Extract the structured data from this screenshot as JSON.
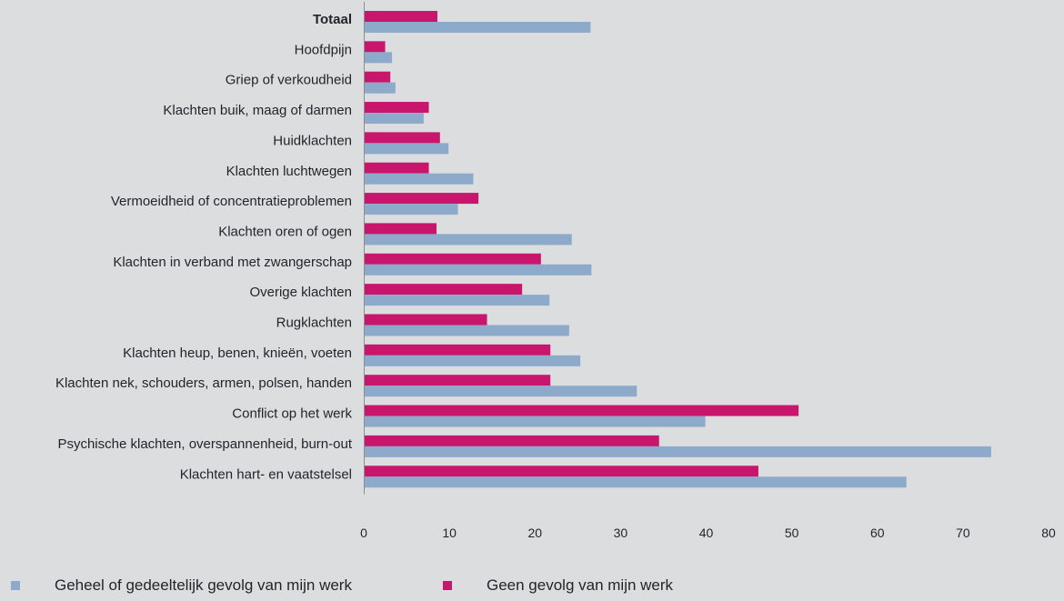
{
  "chart_data": {
    "type": "bar",
    "orientation": "horizontal",
    "categories": [
      "Totaal",
      "Hoofdpijn",
      "Griep of verkoudheid",
      "Klachten buik, maag of darmen",
      "Huidklachten",
      "Klachten luchtwegen",
      "Vermoeidheid of concentratieproblemen",
      "Klachten oren of ogen",
      "Klachten in verband met zwangerschap",
      "Overige klachten",
      "Rugklachten",
      "Klachten heup, benen, knieën, voeten",
      "Klachten nek, schouders, armen, polsen, handen",
      "Conflict op het werk",
      "Psychische klachten, overspannenheid, burn-out",
      "Klachten hart- en vaatstelsel"
    ],
    "bold_categories": [
      "Totaal"
    ],
    "series": [
      {
        "name": "Geheel of gedeeltelijk gevolg van mijn werk",
        "color": "#8eaacb",
        "values": [
          26.5,
          3.3,
          3.7,
          7.0,
          9.9,
          12.8,
          11.0,
          24.3,
          26.6,
          21.7,
          24.0,
          25.3,
          31.9,
          39.9,
          73.3,
          63.4
        ]
      },
      {
        "name": "Geen gevolg van mijn werk",
        "color": "#c7166b",
        "values": [
          8.6,
          2.5,
          3.1,
          7.6,
          8.9,
          7.6,
          13.4,
          8.5,
          20.7,
          18.5,
          14.4,
          21.8,
          21.8,
          50.8,
          34.5,
          46.1
        ]
      }
    ],
    "xlim": [
      0,
      80
    ],
    "xticks": [
      0,
      10,
      20,
      30,
      40,
      50,
      60,
      70,
      80
    ],
    "legend_position": "bottom-left",
    "grid": false
  }
}
